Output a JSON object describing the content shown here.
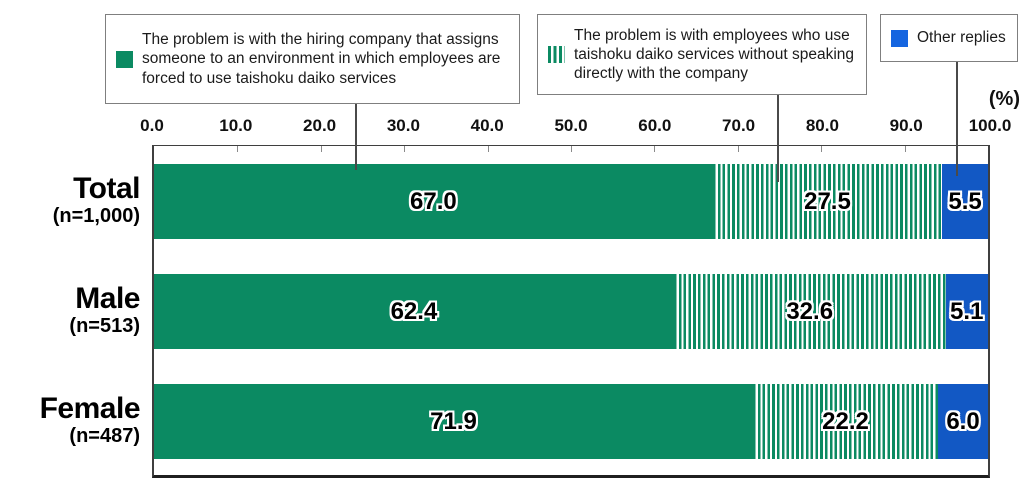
{
  "colors": {
    "green": "#0B8A62",
    "blue": "#1258C4",
    "blue_swatch": "#1565E0"
  },
  "percent_label": "(%)",
  "legend": {
    "items": [
      {
        "label": "The problem is with the hiring company that assigns someone to an environment in which employees are forced to use taishoku daiko services",
        "swatch": "solid-green"
      },
      {
        "label": "The problem is with employees who use taishoku daiko services without speaking directly with the company",
        "swatch": "striped-green"
      },
      {
        "label": "Other replies",
        "swatch": "solid-blue"
      }
    ]
  },
  "chart_data": {
    "type": "bar",
    "subtype": "horizontal-stacked",
    "unit": "%",
    "xlim": [
      0,
      100
    ],
    "x_ticks": [
      "0.0",
      "10.0",
      "20.0",
      "30.0",
      "40.0",
      "50.0",
      "60.0",
      "70.0",
      "80.0",
      "90.0",
      "100.0"
    ],
    "grid": false,
    "legend_position": "top",
    "series_names": [
      "The problem is with the hiring company that assigns someone to an environment in which employees are forced to use taishoku daiko services",
      "The problem is with employees who use taishoku daiko services without speaking directly with the company",
      "Other replies"
    ],
    "rows": [
      {
        "label": "Total",
        "n_label": "(n=1,000)",
        "values": [
          67.0,
          27.5,
          5.5
        ],
        "values_display": [
          "67.0",
          "27.5",
          "5.5"
        ]
      },
      {
        "label": "Male",
        "n_label": "(n=513)",
        "values": [
          62.4,
          32.6,
          5.1
        ],
        "values_display": [
          "62.4",
          "32.6",
          "5.1"
        ]
      },
      {
        "label": "Female",
        "n_label": "(n=487)",
        "values": [
          71.9,
          22.2,
          6.0
        ],
        "values_display": [
          "71.9",
          "22.2",
          "6.0"
        ]
      }
    ]
  }
}
